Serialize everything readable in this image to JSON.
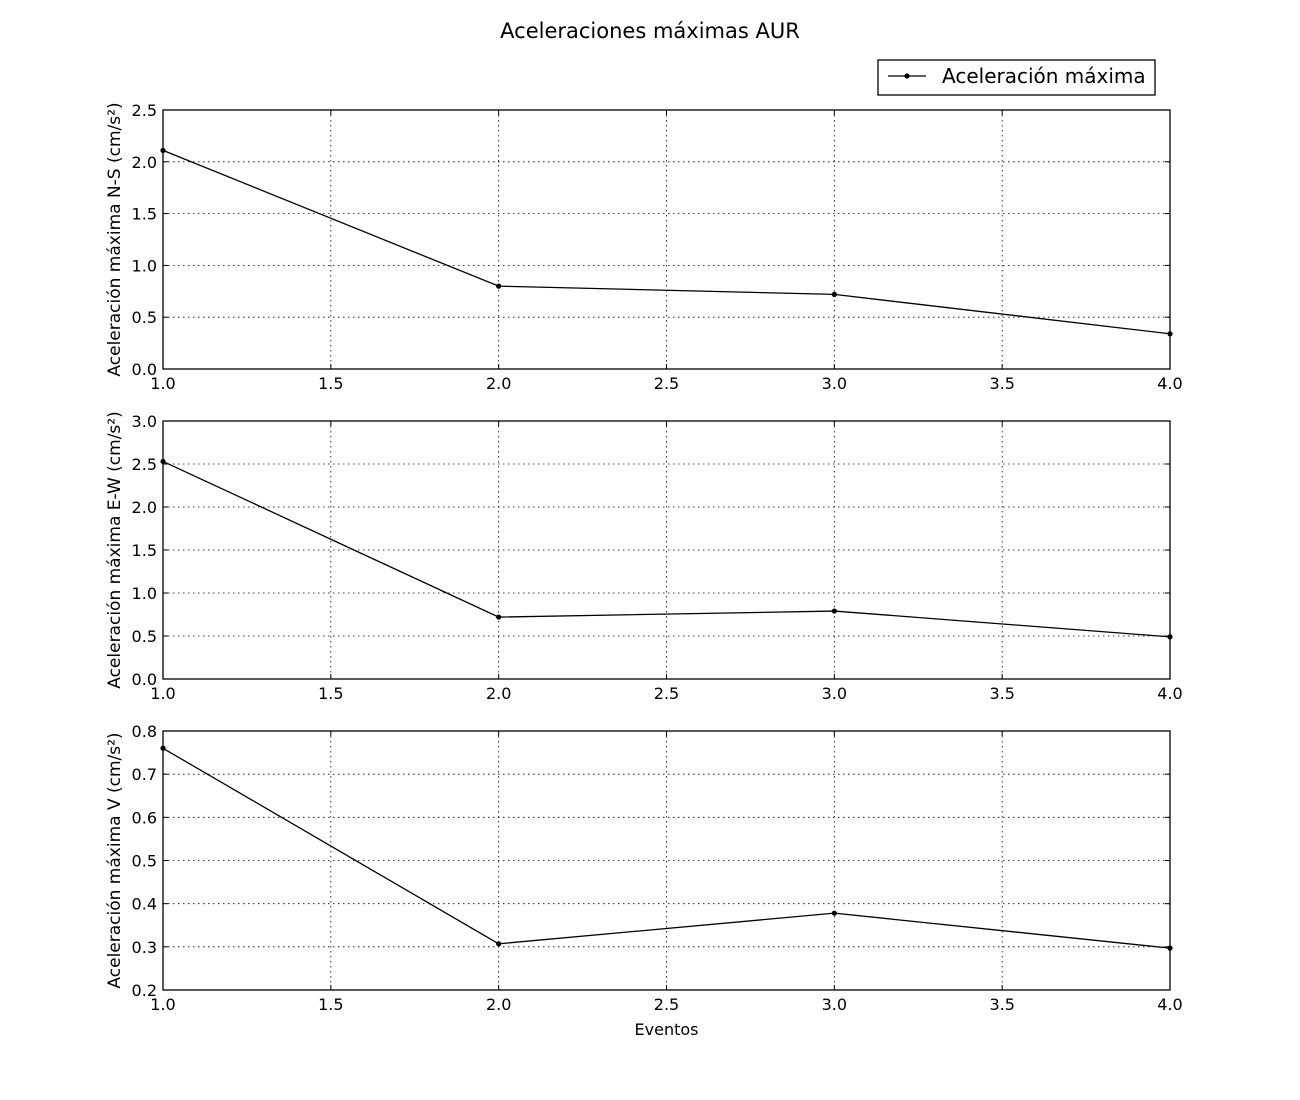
{
  "title": "Aceleraciones máximas AUR",
  "legend": {
    "label": "Aceleración máxima",
    "placement": "upper-right",
    "color": "#000000"
  },
  "chart_data": [
    {
      "type": "line",
      "ylabel": "Aceleración máxima N-S (cm/s²)",
      "xlabel": "",
      "xlim": [
        1.0,
        4.0
      ],
      "ylim": [
        0.0,
        2.5
      ],
      "xticks": [
        "1.0",
        "1.5",
        "2.0",
        "2.5",
        "3.0",
        "3.5",
        "4.0"
      ],
      "yticks": [
        "0.0",
        "0.5",
        "1.0",
        "1.5",
        "2.0",
        "2.5"
      ],
      "grid": true,
      "series": [
        {
          "name": "Aceleración máxima",
          "x": [
            1,
            2,
            3,
            4
          ],
          "y": [
            2.11,
            0.8,
            0.72,
            0.34
          ]
        }
      ]
    },
    {
      "type": "line",
      "ylabel": "Aceleración máxima E-W (cm/s²)",
      "xlabel": "",
      "xlim": [
        1.0,
        4.0
      ],
      "ylim": [
        0.0,
        3.0
      ],
      "xticks": [
        "1.0",
        "1.5",
        "2.0",
        "2.5",
        "3.0",
        "3.5",
        "4.0"
      ],
      "yticks": [
        "0.0",
        "0.5",
        "1.0",
        "1.5",
        "2.0",
        "2.5",
        "3.0"
      ],
      "grid": true,
      "series": [
        {
          "x": [
            1,
            2,
            3,
            4
          ],
          "y": [
            2.53,
            0.72,
            0.79,
            0.49
          ]
        }
      ]
    },
    {
      "type": "line",
      "ylabel": "Aceleración máxima V (cm/s²)",
      "xlabel": "Eventos",
      "xlim": [
        1.0,
        4.0
      ],
      "ylim": [
        0.2,
        0.8
      ],
      "xticks": [
        "1.0",
        "1.5",
        "2.0",
        "2.5",
        "3.0",
        "3.5",
        "4.0"
      ],
      "yticks": [
        "0.2",
        "0.3",
        "0.4",
        "0.5",
        "0.6",
        "0.7",
        "0.8"
      ],
      "grid": true,
      "series": [
        {
          "x": [
            1,
            2,
            3,
            4
          ],
          "y": [
            0.76,
            0.307,
            0.378,
            0.297
          ]
        }
      ]
    }
  ]
}
